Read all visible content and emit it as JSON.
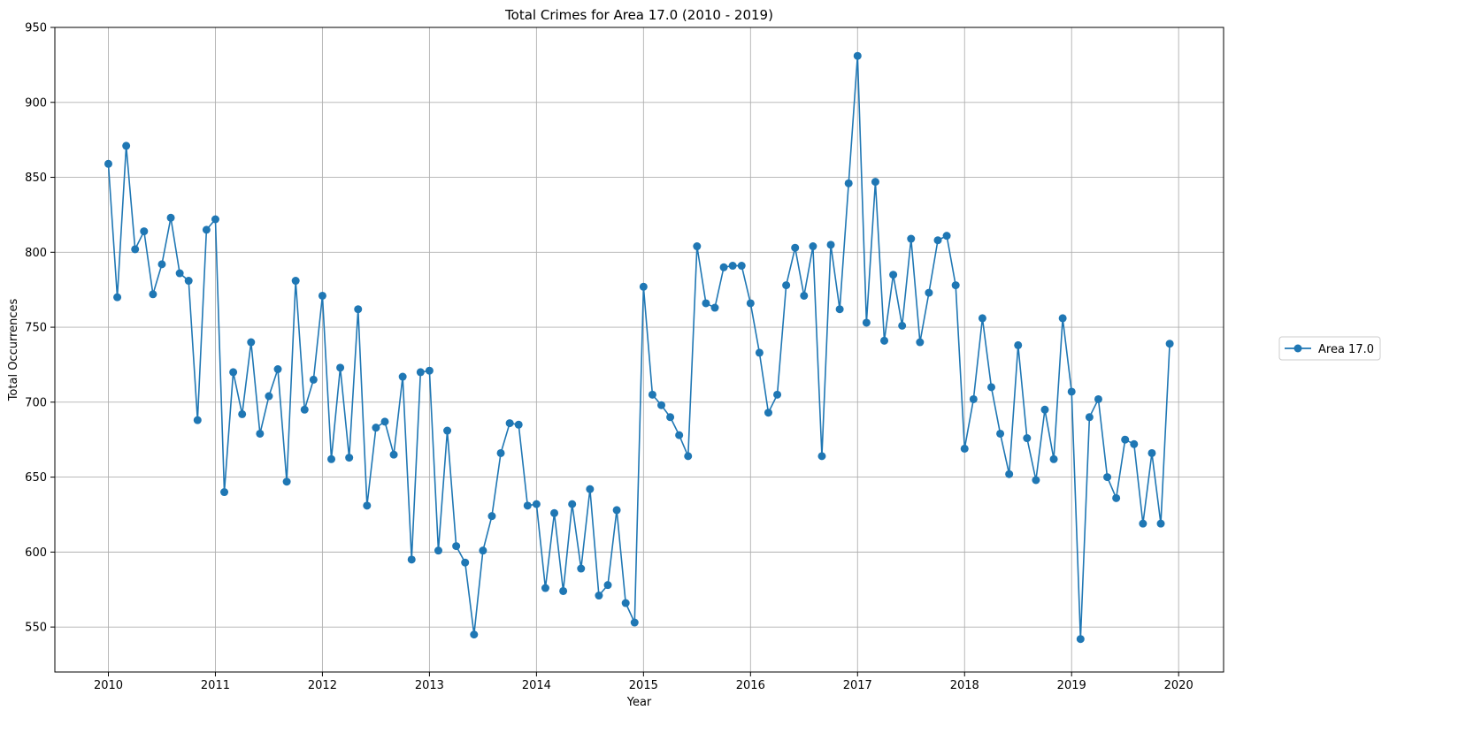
{
  "chart_data": {
    "type": "line",
    "title": "Total Crimes for Area 17.0 (2010 - 2019)",
    "xlabel": "Year",
    "ylabel": "Total Occurrences",
    "xlim": [
      2009.5,
      2020.42
    ],
    "ylim": [
      520,
      950
    ],
    "x_ticks": [
      2010,
      2011,
      2012,
      2013,
      2014,
      2015,
      2016,
      2017,
      2018,
      2019,
      2020
    ],
    "y_ticks": [
      550,
      600,
      650,
      700,
      750,
      800,
      850,
      900,
      950
    ],
    "grid": true,
    "legend_position": "right",
    "series": [
      {
        "name": "Area 17.0",
        "color": "#1f77b4",
        "marker": "circle",
        "x_start": "2010-01",
        "frequency": "monthly",
        "values": [
          859,
          770,
          871,
          802,
          814,
          772,
          792,
          823,
          786,
          781,
          688,
          815,
          822,
          640,
          720,
          692,
          740,
          679,
          704,
          722,
          647,
          781,
          695,
          715,
          771,
          662,
          723,
          663,
          762,
          631,
          683,
          687,
          665,
          717,
          595,
          720,
          721,
          601,
          681,
          604,
          593,
          545,
          601,
          624,
          666,
          686,
          685,
          631,
          632,
          576,
          626,
          574,
          632,
          589,
          642,
          571,
          578,
          628,
          566,
          553,
          777,
          705,
          698,
          690,
          678,
          664,
          804,
          766,
          763,
          790,
          791,
          791,
          766,
          733,
          693,
          705,
          778,
          803,
          771,
          804,
          664,
          805,
          762,
          846,
          931,
          753,
          847,
          741,
          785,
          751,
          809,
          740,
          773,
          808,
          811,
          778,
          669,
          702,
          756,
          710,
          679,
          652,
          738,
          676,
          648,
          695,
          662,
          756,
          707,
          542,
          690,
          702,
          650,
          636,
          675,
          672,
          619,
          666,
          619,
          739
        ]
      }
    ]
  }
}
